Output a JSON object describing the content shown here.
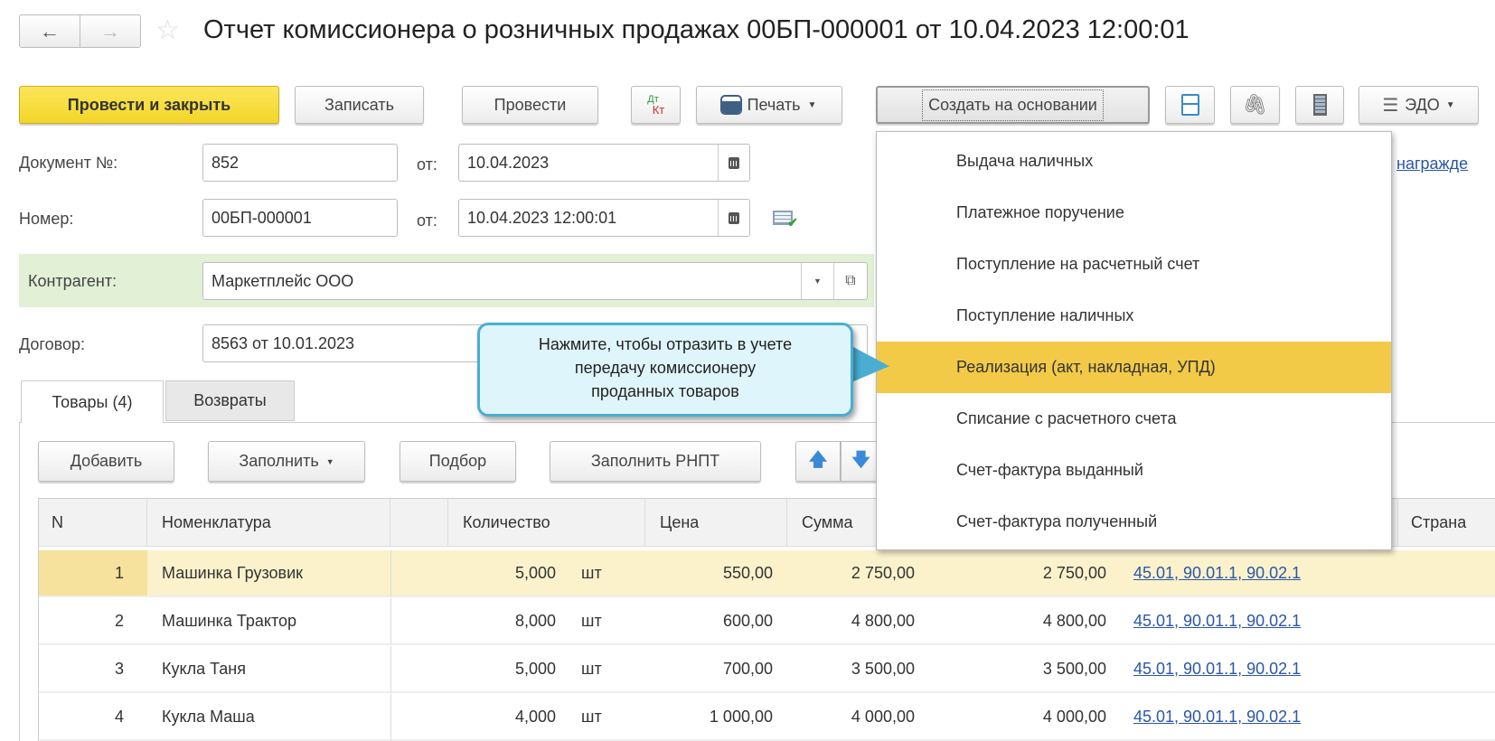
{
  "header": {
    "title": "Отчет комиссионера о розничных продажах 00БП-000001 от 10.04.2023 12:00:01",
    "back_icon": "arrow-left",
    "forward_icon": "arrow-right",
    "favorite_icon": "star"
  },
  "toolbar": {
    "post_close": "Провести и закрыть",
    "save": "Записать",
    "post": "Провести",
    "dtkt_top": "Дт",
    "dtkt_bottom": "Кт",
    "print": "Печать",
    "create_based": "Создать на основании",
    "edo": "ЭДО"
  },
  "form": {
    "doc_no_label": "Документ №:",
    "doc_no": "852",
    "from_label": "от:",
    "doc_date": "10.04.2023",
    "number_label": "Номер:",
    "number": "00БП-000001",
    "number_date": "10.04.2023 12:00:01",
    "counterparty_label": "Контрагент:",
    "counterparty": "Маркетплейс ООО",
    "contract_label": "Договор:",
    "contract": "8563 от 10.01.2023",
    "reward_link": "награжде"
  },
  "menu": {
    "items": [
      "Выдача наличных",
      "Платежное поручение",
      "Поступление на расчетный счет",
      "Поступление наличных",
      "Реализация (акт, накладная, УПД)",
      "Списание с расчетного счета",
      "Счет-фактура выданный",
      "Счет-фактура полученный"
    ],
    "highlighted": 4
  },
  "tooltip": {
    "line1": "Нажмите, чтобы отразить в учете",
    "line2": "передачу комиссионеру",
    "line3": "проданных товаров"
  },
  "tabs": [
    {
      "label": "Товары (4)",
      "active": true
    },
    {
      "label": "Возвраты",
      "active": false
    }
  ],
  "table_toolbar": {
    "add": "Добавить",
    "fill": "Заполнить",
    "pick": "Подбор",
    "fill_rnpt": "Заполнить РНПТ"
  },
  "table": {
    "headers": {
      "n": "N",
      "item": "Номенклатура",
      "qty": "Количество",
      "price": "Цена",
      "sum": "Сумма",
      "country": "Страна"
    },
    "rows": [
      {
        "n": "1",
        "item": "Машинка Грузовик",
        "qty": "5,000",
        "unit": "шт",
        "price": "550,00",
        "sum": "2 750,00",
        "sum2": "2 750,00",
        "accounts": "45.01, 90.01.1, 90.02.1"
      },
      {
        "n": "2",
        "item": "Машинка Трактор",
        "qty": "8,000",
        "unit": "шт",
        "price": "600,00",
        "sum": "4 800,00",
        "sum2": "4 800,00",
        "accounts": "45.01, 90.01.1, 90.02.1"
      },
      {
        "n": "3",
        "item": "Кукла Таня",
        "qty": "5,000",
        "unit": "шт",
        "price": "700,00",
        "sum": "3 500,00",
        "sum2": "3 500,00",
        "accounts": "45.01, 90.01.1, 90.02.1"
      },
      {
        "n": "4",
        "item": "Кукла Маша",
        "qty": "4,000",
        "unit": "шт",
        "price": "1 000,00",
        "sum": "4 000,00",
        "sum2": "4 000,00",
        "accounts": "45.01, 90.01.1, 90.02.1"
      }
    ]
  },
  "colors": {
    "primary_button": "#f3d629",
    "highlight": "#f2ca48",
    "selected_row": "#fbf2cc",
    "counterparty_band": "#e2f0d6",
    "tooltip_bg": "#dff5fc",
    "tooltip_border": "#4aaed2",
    "link": "#2b56a8"
  }
}
